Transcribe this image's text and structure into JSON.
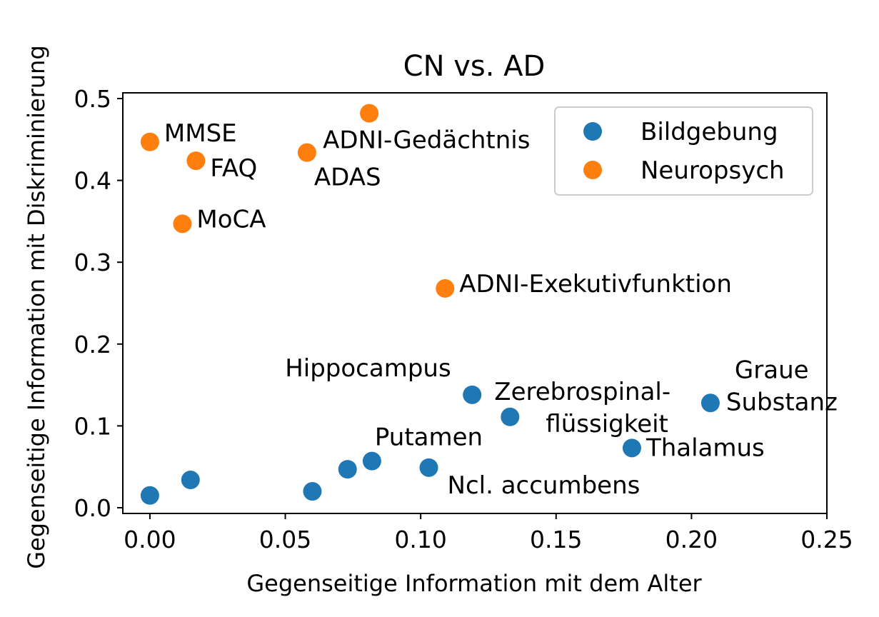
{
  "chart_data": {
    "type": "scatter",
    "title": "CN vs. AD",
    "xlabel": "Gegenseitige Information mit dem Alter",
    "ylabel": "Gegenseitige Information mit Diskriminierung",
    "xlim": [
      -0.01,
      0.25
    ],
    "ylim": [
      -0.007,
      0.507
    ],
    "xticks": [
      0.0,
      0.05,
      0.1,
      0.15,
      0.2,
      0.25
    ],
    "xtick_labels": [
      "0.00",
      "0.05",
      "0.10",
      "0.15",
      "0.20",
      "0.25"
    ],
    "yticks": [
      0.0,
      0.1,
      0.2,
      0.3,
      0.4,
      0.5
    ],
    "ytick_labels": [
      "0.0",
      "0.1",
      "0.2",
      "0.3",
      "0.4",
      "0.5"
    ],
    "grid": false,
    "legend_position": "top-right",
    "series": [
      {
        "name": "Bildgebung",
        "color": "#1f77b4",
        "points": [
          {
            "x": 0.0,
            "y": 0.015,
            "label": ""
          },
          {
            "x": 0.015,
            "y": 0.034,
            "label": ""
          },
          {
            "x": 0.06,
            "y": 0.02,
            "label": ""
          },
          {
            "x": 0.073,
            "y": 0.047,
            "label": ""
          },
          {
            "x": 0.082,
            "y": 0.057,
            "label": "Putamen"
          },
          {
            "x": 0.103,
            "y": 0.049,
            "label": "Ncl. accumbens"
          },
          {
            "x": 0.119,
            "y": 0.138,
            "label": "Hippocampus"
          },
          {
            "x": 0.133,
            "y": 0.111,
            "label": "Zerebrospinal-\nflüssigkeit"
          },
          {
            "x": 0.178,
            "y": 0.073,
            "label": "Thalamus"
          },
          {
            "x": 0.207,
            "y": 0.128,
            "label": "Graue\nSubstanz"
          }
        ]
      },
      {
        "name": "Neuropsych",
        "color": "#ff7f0e",
        "points": [
          {
            "x": 0.0,
            "y": 0.447,
            "label": "MMSE"
          },
          {
            "x": 0.017,
            "y": 0.424,
            "label": "FAQ"
          },
          {
            "x": 0.012,
            "y": 0.347,
            "label": "MoCA"
          },
          {
            "x": 0.058,
            "y": 0.434,
            "label": "ADAS"
          },
          {
            "x": 0.081,
            "y": 0.482,
            "label": "ADNI-Gedächtnis"
          },
          {
            "x": 0.109,
            "y": 0.268,
            "label": "ADNI-Exekutivfunktion"
          }
        ]
      }
    ]
  }
}
